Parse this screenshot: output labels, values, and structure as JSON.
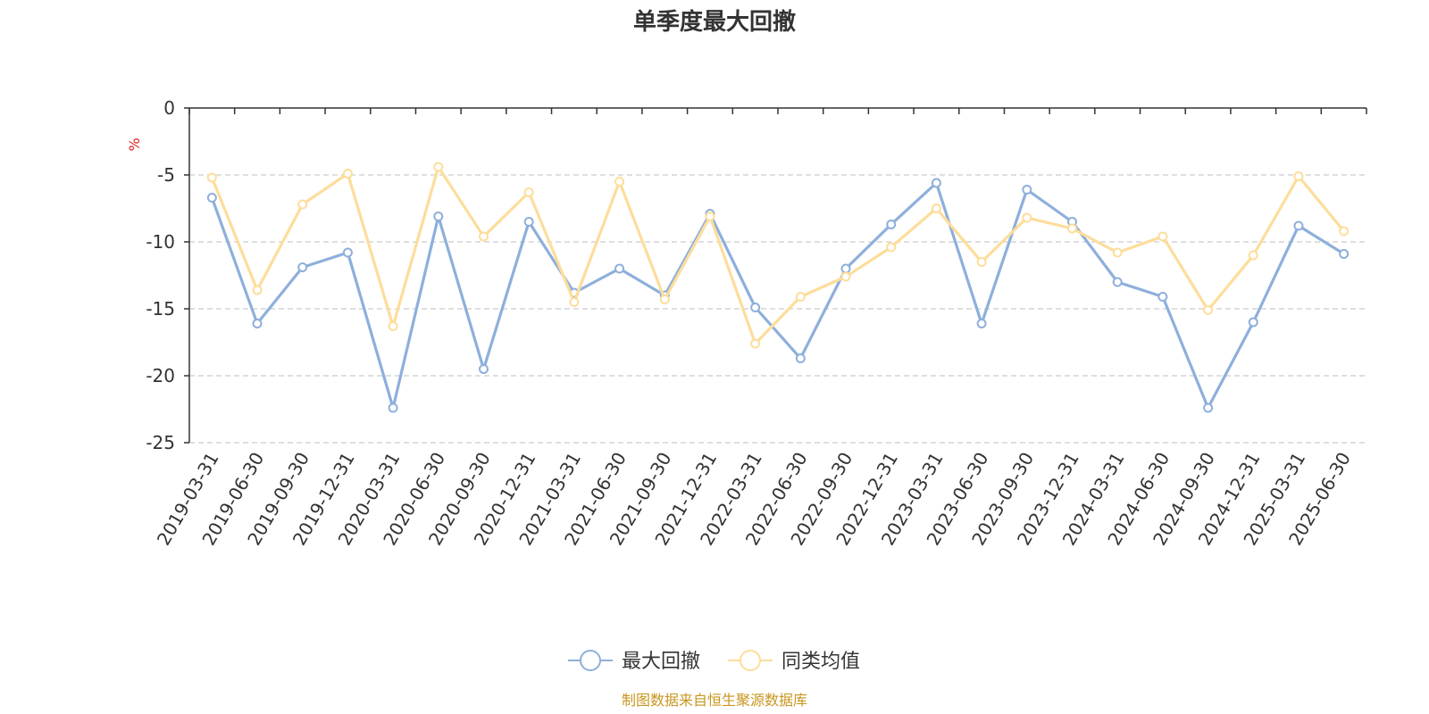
{
  "chart_data": {
    "type": "line",
    "title": "单季度最大回撤",
    "ylabel": "%",
    "ylim": [
      -25,
      0
    ],
    "yticks": [
      0,
      -5,
      -10,
      -15,
      -20,
      -25
    ],
    "grid": true,
    "legend_position": "bottom",
    "categories": [
      "2019-03-31",
      "2019-06-30",
      "2019-09-30",
      "2019-12-31",
      "2020-03-31",
      "2020-06-30",
      "2020-09-30",
      "2020-12-31",
      "2021-03-31",
      "2021-06-30",
      "2021-09-30",
      "2021-12-31",
      "2022-03-31",
      "2022-06-30",
      "2022-09-30",
      "2022-12-31",
      "2023-03-31",
      "2023-06-30",
      "2023-09-30",
      "2023-12-31",
      "2024-03-31",
      "2024-06-30",
      "2024-09-30",
      "2024-12-31",
      "2025-03-31",
      "2025-06-30"
    ],
    "series": [
      {
        "name": "最大回撤",
        "color": "#8eafdb",
        "values": [
          -6.7,
          -16.1,
          -11.9,
          -10.8,
          -22.4,
          -8.1,
          -19.5,
          -8.5,
          -13.8,
          -12.0,
          -14.0,
          -7.9,
          -14.9,
          -18.7,
          -12.0,
          -8.7,
          -5.6,
          -16.1,
          -6.1,
          -8.5,
          -13.0,
          -14.1,
          -22.4,
          -16.0,
          -8.8,
          -10.9
        ]
      },
      {
        "name": "同类均值",
        "color": "#fddd9b",
        "values": [
          -5.2,
          -13.6,
          -7.2,
          -4.9,
          -16.3,
          -4.4,
          -9.6,
          -6.3,
          -14.5,
          -5.5,
          -14.3,
          -8.1,
          -17.6,
          -14.1,
          -12.6,
          -10.4,
          -7.5,
          -11.5,
          -8.2,
          -9.0,
          -10.8,
          -9.6,
          -15.1,
          -11.0,
          -5.1,
          -9.2
        ]
      }
    ]
  },
  "source": {
    "text": "制图数据来自恒生聚源数据库",
    "color": "#c8961e"
  },
  "unit_color": "#e02020"
}
